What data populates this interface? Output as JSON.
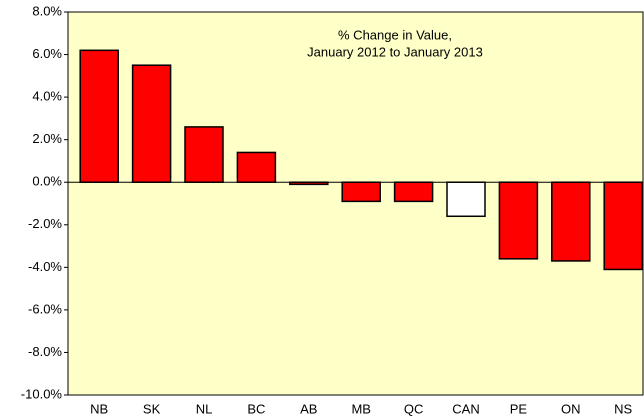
{
  "chart_data": {
    "type": "bar",
    "title": [
      "% Change in Value,",
      "January 2012 to January 2013"
    ],
    "categories": [
      "NB",
      "SK",
      "NL",
      "BC",
      "AB",
      "MB",
      "QC",
      "CAN",
      "PE",
      "ON",
      "NS"
    ],
    "values": [
      6.2,
      5.5,
      2.6,
      1.4,
      -0.1,
      -0.9,
      -0.9,
      -1.6,
      -3.6,
      -3.7,
      -4.1
    ],
    "colors": [
      "#ff0000",
      "#ff0000",
      "#ff0000",
      "#ff0000",
      "#ff0000",
      "#ff0000",
      "#ff0000",
      "#ffffff",
      "#ff0000",
      "#ff0000",
      "#ff0000"
    ],
    "background": "#ffffc8",
    "ylim": [
      -10,
      8
    ],
    "yticks": [
      {
        "value": -10,
        "label": "-10.0%"
      },
      {
        "value": -8,
        "label": "-8.0%"
      },
      {
        "value": -6,
        "label": "-6.0%"
      },
      {
        "value": -4,
        "label": "-4.0%"
      },
      {
        "value": -2,
        "label": "-2.0%"
      },
      {
        "value": 0,
        "label": "0.0%"
      },
      {
        "value": 2,
        "label": "2.0%"
      },
      {
        "value": 4,
        "label": "4.0%"
      },
      {
        "value": 6,
        "label": "6.0%"
      },
      {
        "value": 8,
        "label": "8.0%"
      }
    ],
    "grid": false
  }
}
